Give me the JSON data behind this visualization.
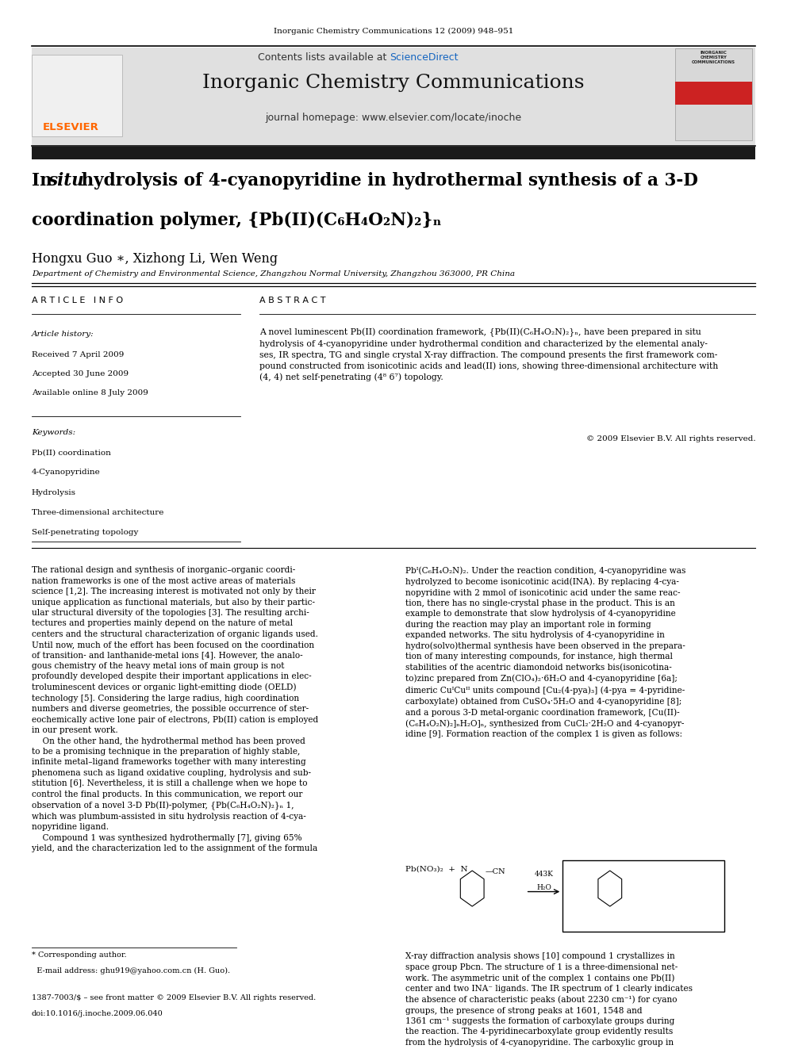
{
  "bg_color": "#ffffff",
  "page_width": 9.92,
  "page_height": 13.23,
  "journal_ref": "Inorganic Chemistry Communications 12 (2009) 948–951",
  "header_bg": "#e8e8e8",
  "sciencedirect_color": "#1565c0",
  "journal_name": "Inorganic Chemistry Communications",
  "homepage_text": "journal homepage: www.elsevier.com/locate/inoche",
  "elsevier_color": "#ff6600",
  "elsevier_text": "ELSEVIER",
  "authors": "Hongxu Guo ∗, Xizhong Li, Wen Weng",
  "affiliation": "Department of Chemistry and Environmental Science, Zhangzhou Normal University, Zhangzhou 363000, PR China",
  "article_info_header": "A R T I C L E   I N F O",
  "abstract_header": "A B S T R A C T",
  "received": "Received 7 April 2009",
  "accepted": "Accepted 30 June 2009",
  "available": "Available online 8 July 2009",
  "keywords": [
    "Pb(II) coordination",
    "4-Cyanopyridine",
    "Hydrolysis",
    "Three-dimensional architecture",
    "Self-penetrating topology"
  ],
  "copyright": "© 2009 Elsevier B.V. All rights reserved.",
  "black_bar_color": "#1a1a1a"
}
